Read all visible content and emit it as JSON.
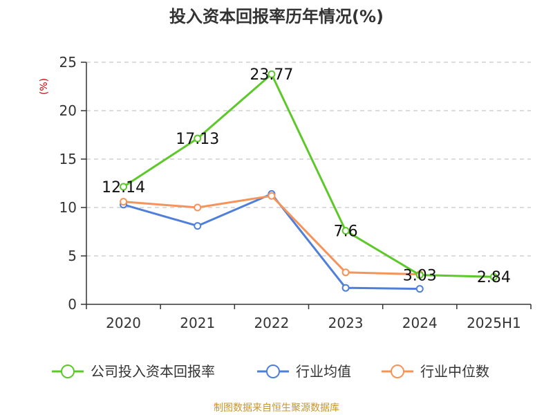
{
  "chart_data": {
    "type": "line",
    "title": "投入资本回报率历年情况(%)",
    "ylabel": "(%)",
    "categories": [
      "2020",
      "2021",
      "2022",
      "2023",
      "2024",
      "2025H1"
    ],
    "ylim": [
      0,
      25
    ],
    "yticks": [
      0,
      5,
      10,
      15,
      20,
      25
    ],
    "grid": true,
    "legend_position": "bottom",
    "series": [
      {
        "name": "公司投入资本回报率",
        "color": "#5cc82a",
        "values": [
          12.14,
          17.13,
          23.77,
          7.6,
          3.03,
          2.84
        ],
        "labels": [
          "12.14",
          "17.13",
          "23.77",
          "7.6",
          "3.03",
          "2.84"
        ]
      },
      {
        "name": "行业均值",
        "color": "#4f7fdb",
        "values": [
          10.3,
          8.1,
          11.4,
          1.7,
          1.6,
          null
        ]
      },
      {
        "name": "行业中位数",
        "color": "#f6935a",
        "values": [
          10.6,
          10.0,
          11.2,
          3.3,
          3.1,
          null
        ]
      }
    ]
  },
  "source": "制图数据来自恒生聚源数据库"
}
